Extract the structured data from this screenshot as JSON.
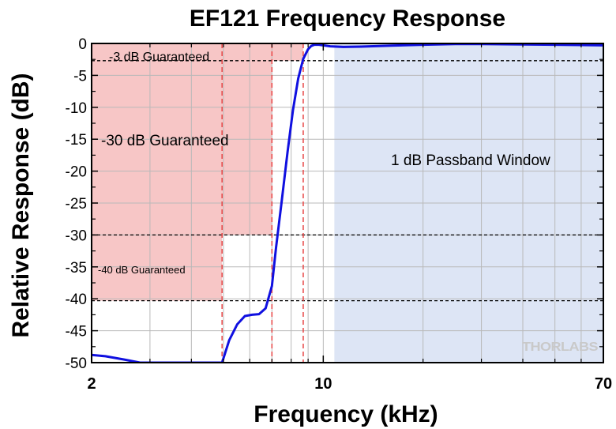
{
  "chart_data": {
    "type": "line",
    "title": "EF121 Frequency Response",
    "xlabel": "Frequency (kHz)",
    "ylabel": "Relative Response (dB)",
    "xscale": "log",
    "xlim": [
      2,
      70
    ],
    "ylim": [
      -50,
      0
    ],
    "x_tick_labels": [
      "2",
      "10",
      "70"
    ],
    "x_ticks": [
      2,
      10,
      70
    ],
    "y_ticks": [
      0,
      -5,
      -10,
      -15,
      -20,
      -25,
      -30,
      -35,
      -40,
      -45,
      -50
    ],
    "y_tick_labels": [
      "0",
      "-5",
      "-10",
      "-15",
      "-20",
      "-25",
      "-30",
      "-35",
      "-40",
      "-45",
      "-50"
    ],
    "grid": true,
    "series": [
      {
        "color": "#1010e0",
        "x": [
          2.0,
          2.2,
          2.5,
          2.8,
          4.95,
          5.2,
          5.5,
          5.8,
          6.1,
          6.4,
          6.7,
          7.0,
          7.2,
          7.5,
          7.8,
          8.1,
          8.4,
          8.7,
          9.0,
          9.2,
          9.4,
          9.7,
          10.0,
          10.5,
          11.5,
          13,
          16,
          20,
          25,
          30,
          40,
          50,
          60,
          70
        ],
        "y": [
          -48.8,
          -49.0,
          -49.5,
          -50.0,
          -50.0,
          -46.5,
          -44.0,
          -42.7,
          -42.5,
          -42.4,
          -41.5,
          -38.0,
          -32.0,
          -24.5,
          -17.0,
          -10.5,
          -5.5,
          -2.4,
          -0.9,
          -0.4,
          -0.2,
          -0.2,
          -0.3,
          -0.45,
          -0.55,
          -0.5,
          -0.35,
          -0.2,
          -0.1,
          -0.1,
          -0.15,
          -0.2,
          -0.25,
          -0.3
        ]
      }
    ],
    "regions": [
      {
        "label": "-3 dB Guaranteed",
        "x": [
          2,
          8.7
        ],
        "y": [
          -2.7,
          0
        ],
        "color": "#f7c6c6"
      },
      {
        "label": "-30 dB Guaranteed",
        "x": [
          2,
          7.0
        ],
        "y": [
          -30,
          0
        ],
        "color": "#f7c6c6"
      },
      {
        "label": "-40 dB Guaranteed",
        "x": [
          2,
          4.95
        ],
        "y": [
          -40.3,
          0
        ],
        "color": "#f7c6c6"
      },
      {
        "label": "1 dB Passband Window",
        "x": [
          10.8,
          70
        ],
        "y": [
          -50,
          0
        ],
        "color": "#dde5f5"
      }
    ],
    "guides": {
      "horizontal": [
        -2.7,
        -30,
        -40.3
      ],
      "vertical": [
        4.95,
        7.0,
        8.7
      ]
    }
  },
  "annotations": {
    "band_3db": "-3 dB Guaranteed",
    "band_30db": "-30 dB Guaranteed",
    "band_40db": "-40 dB Guaranteed",
    "passband": "1 dB Passband Window"
  },
  "logo": {
    "text": "THORLABS"
  },
  "colors": {
    "stopband": "#f7c6c6",
    "passband": "#dde5f5",
    "curve": "#1010e0",
    "guide_red": "#e84545"
  }
}
